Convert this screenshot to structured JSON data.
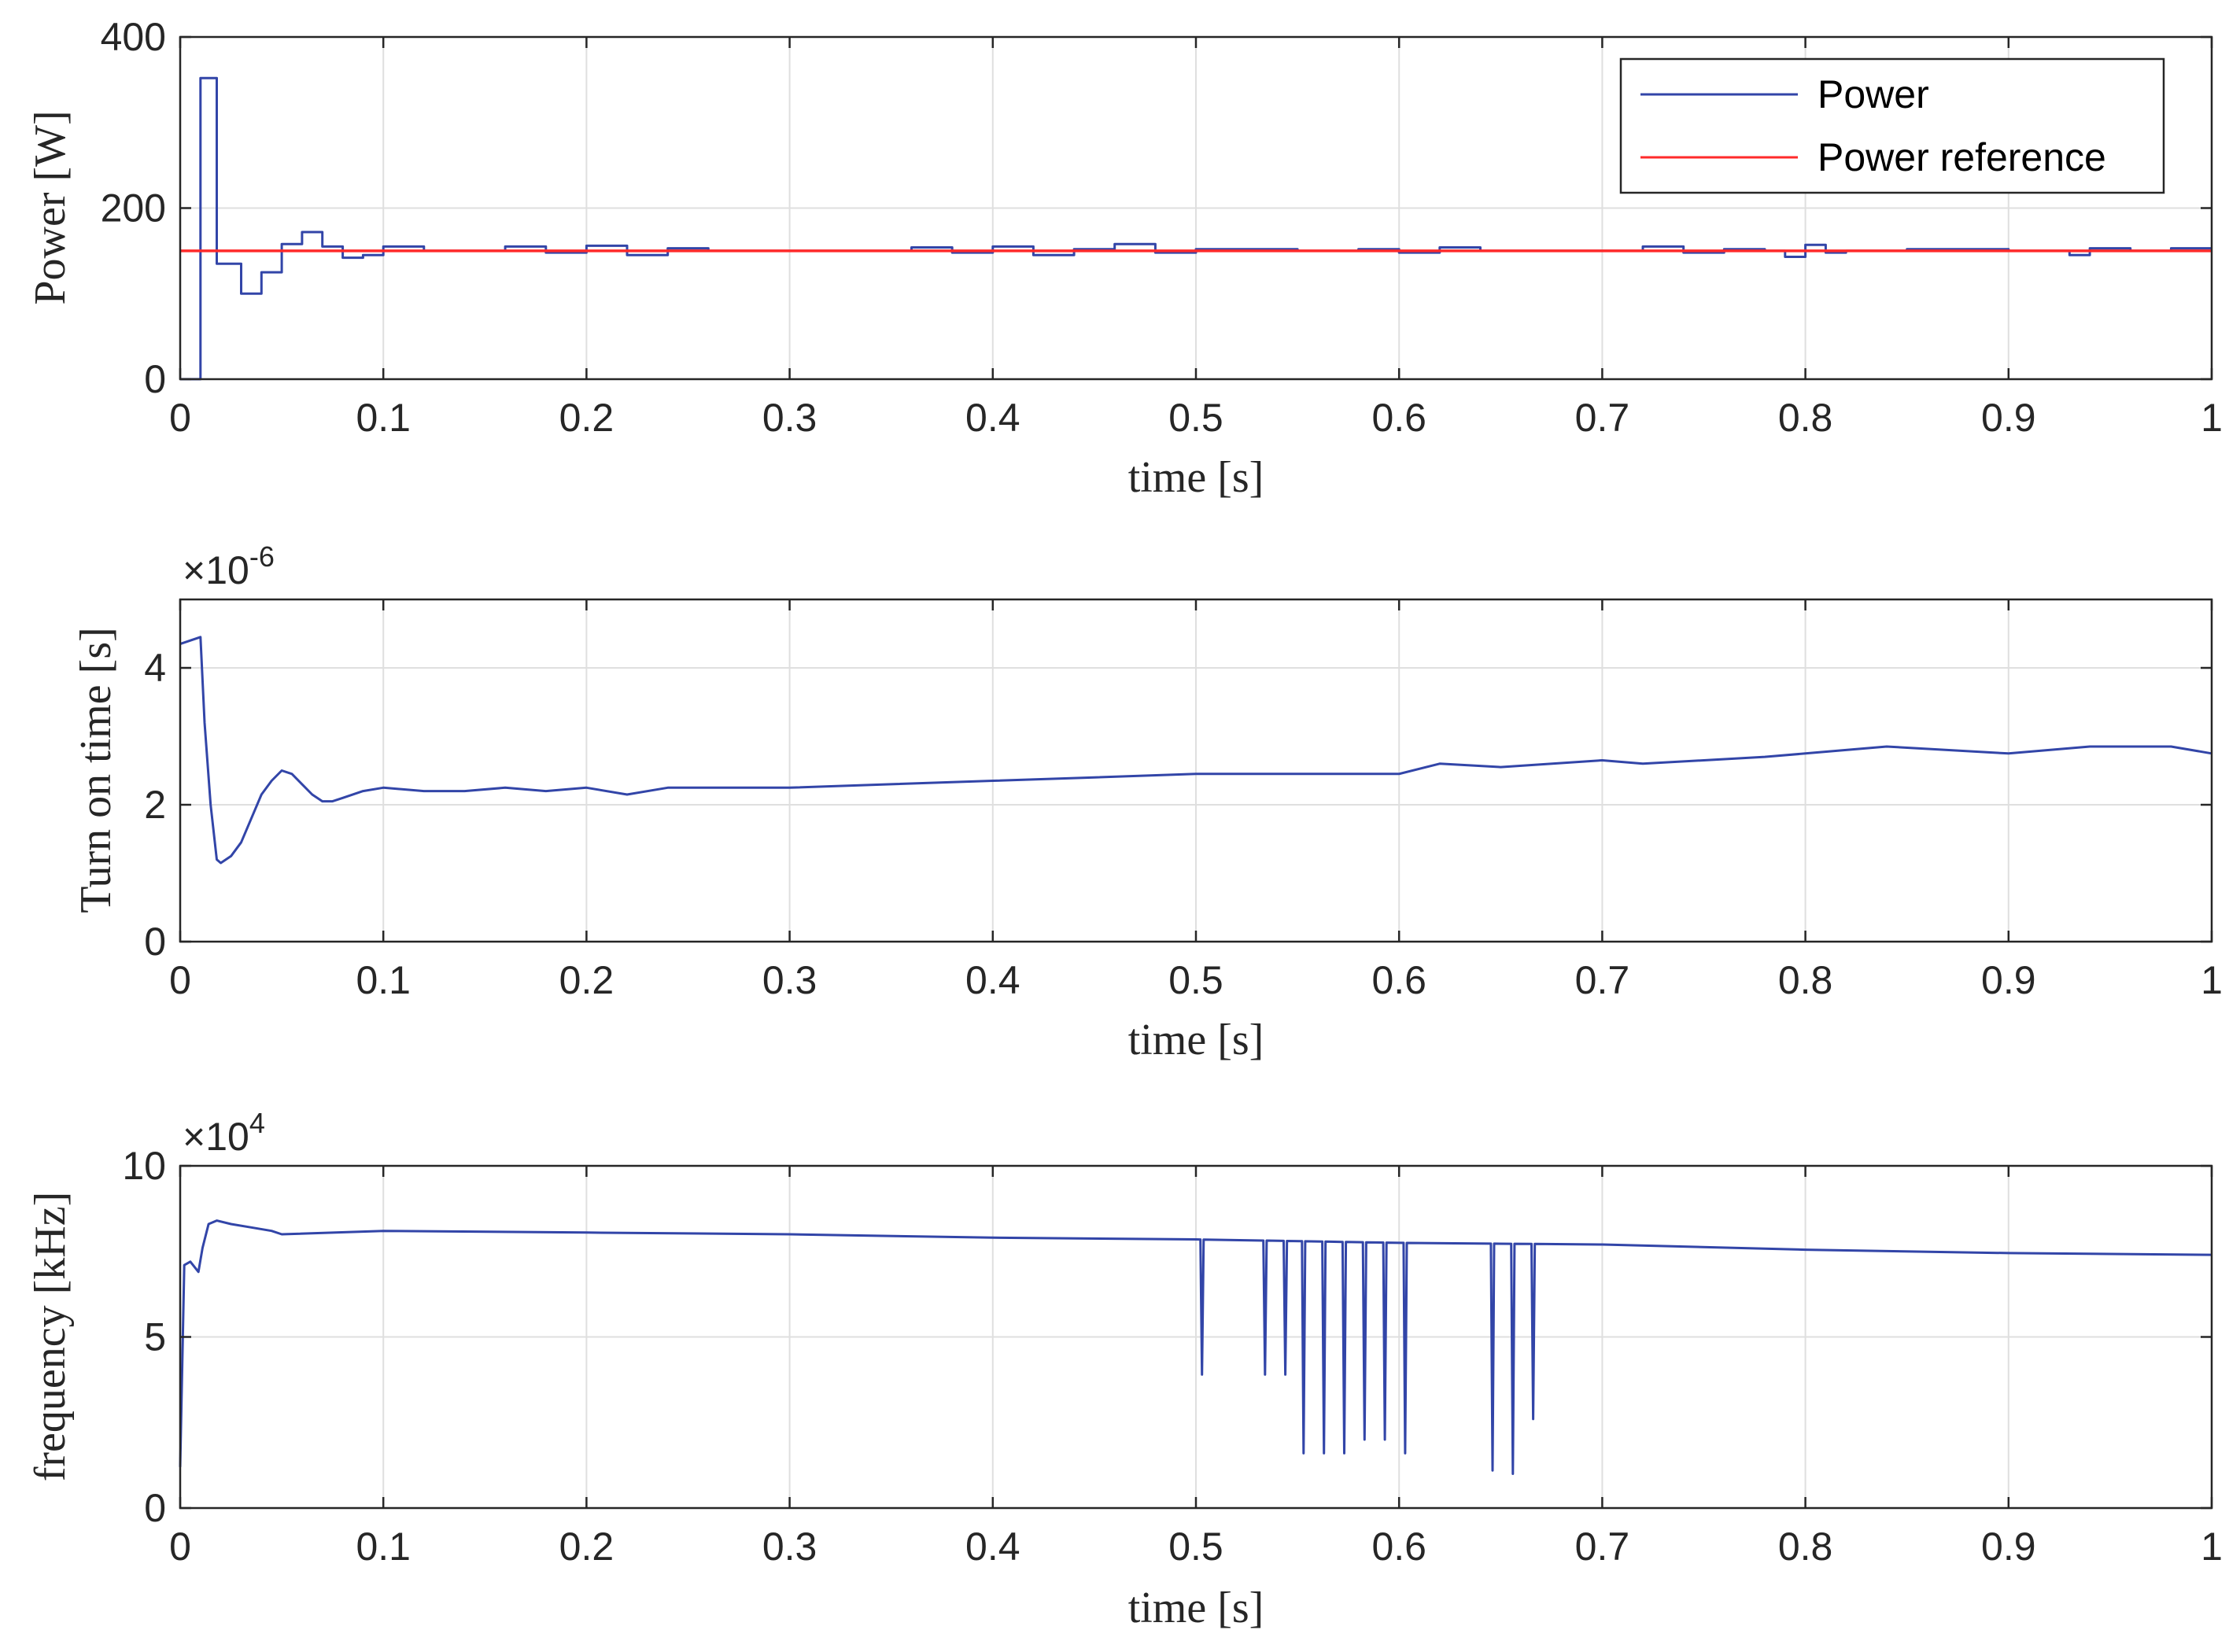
{
  "colors": {
    "power": "#3245a8",
    "reference": "#ff2a2a",
    "axis": "#262626",
    "grid": "#dfdfdf"
  },
  "chart_data": [
    {
      "type": "line",
      "xlabel": "time [s]",
      "ylabel": "Power [W]",
      "xlim": [
        0,
        1
      ],
      "ylim": [
        0,
        400
      ],
      "xticks": [
        "0",
        "0.1",
        "0.2",
        "0.3",
        "0.4",
        "0.5",
        "0.6",
        "0.7",
        "0.8",
        "0.9",
        "1"
      ],
      "yticks": [
        "0",
        "200",
        "400"
      ],
      "ytick_values": [
        0,
        200,
        400
      ],
      "grid": true,
      "legend": {
        "placement": "top-right",
        "entries": [
          "Power",
          "Power reference"
        ]
      },
      "series": [
        {
          "name": "Power",
          "style": "step",
          "x": [
            0,
            0.01,
            0.018,
            0.03,
            0.04,
            0.05,
            0.06,
            0.07,
            0.08,
            0.09,
            0.1,
            0.12,
            0.14,
            0.16,
            0.18,
            0.2,
            0.22,
            0.24,
            0.26,
            0.3,
            0.36,
            0.38,
            0.4,
            0.42,
            0.44,
            0.46,
            0.48,
            0.5,
            0.55,
            0.58,
            0.6,
            0.62,
            0.64,
            0.7,
            0.72,
            0.74,
            0.76,
            0.78,
            0.79,
            0.8,
            0.81,
            0.82,
            0.85,
            0.9,
            0.93,
            0.94,
            0.96,
            0.98,
            1.0
          ],
          "values": [
            0,
            352,
            135,
            100,
            125,
            158,
            172,
            155,
            142,
            145,
            155,
            150,
            150,
            155,
            148,
            156,
            145,
            153,
            150,
            150,
            154,
            148,
            155,
            145,
            152,
            158,
            148,
            152,
            150,
            152,
            148,
            154,
            150,
            150,
            155,
            148,
            152,
            150,
            143,
            157,
            148,
            150,
            152,
            150,
            145,
            153,
            150,
            153,
            153
          ]
        },
        {
          "name": "Power reference",
          "style": "line",
          "x": [
            0,
            1
          ],
          "values": [
            150,
            150
          ]
        }
      ]
    },
    {
      "type": "line",
      "xlabel": "time [s]",
      "ylabel": "Turn on time [s]",
      "exponent": "×10-6",
      "exponent_base": "×10",
      "exponent_power": "-6",
      "xlim": [
        0,
        1
      ],
      "ylim": [
        0,
        5
      ],
      "xticks": [
        "0",
        "0.1",
        "0.2",
        "0.3",
        "0.4",
        "0.5",
        "0.6",
        "0.7",
        "0.8",
        "0.9",
        "1"
      ],
      "yticks": [
        "0",
        "2",
        "4"
      ],
      "ytick_values": [
        0,
        2,
        4
      ],
      "grid": true,
      "series": [
        {
          "name": "Turn on time",
          "x": [
            0,
            0.01,
            0.012,
            0.015,
            0.018,
            0.02,
            0.025,
            0.03,
            0.035,
            0.04,
            0.045,
            0.05,
            0.055,
            0.06,
            0.065,
            0.07,
            0.075,
            0.08,
            0.09,
            0.1,
            0.12,
            0.14,
            0.16,
            0.18,
            0.2,
            0.22,
            0.24,
            0.26,
            0.3,
            0.35,
            0.4,
            0.45,
            0.5,
            0.55,
            0.6,
            0.62,
            0.65,
            0.7,
            0.72,
            0.75,
            0.78,
            0.8,
            0.84,
            0.9,
            0.94,
            0.98,
            1.0
          ],
          "values": [
            4.35,
            4.45,
            3.2,
            2.0,
            1.2,
            1.15,
            1.25,
            1.45,
            1.8,
            2.15,
            2.35,
            2.5,
            2.45,
            2.3,
            2.15,
            2.05,
            2.05,
            2.1,
            2.2,
            2.25,
            2.2,
            2.2,
            2.25,
            2.2,
            2.25,
            2.15,
            2.25,
            2.25,
            2.25,
            2.3,
            2.35,
            2.4,
            2.45,
            2.45,
            2.45,
            2.6,
            2.55,
            2.65,
            2.6,
            2.65,
            2.7,
            2.75,
            2.85,
            2.75,
            2.85,
            2.85,
            2.75
          ]
        }
      ]
    },
    {
      "type": "line",
      "xlabel": "time [s]",
      "ylabel": "frequency [kHz]",
      "exponent": "×104",
      "exponent_base": "×10",
      "exponent_power": "4",
      "xlim": [
        0,
        1
      ],
      "ylim": [
        0,
        10
      ],
      "xticks": [
        "0",
        "0.1",
        "0.2",
        "0.3",
        "0.4",
        "0.5",
        "0.6",
        "0.7",
        "0.8",
        "0.9",
        "1"
      ],
      "yticks": [
        "0",
        "5",
        "10"
      ],
      "ytick_values": [
        0,
        5,
        10
      ],
      "grid": true,
      "series": [
        {
          "name": "frequency",
          "x": [
            0,
            0.002,
            0.005,
            0.009,
            0.011,
            0.014,
            0.018,
            0.025,
            0.035,
            0.045,
            0.05,
            0.1,
            0.2,
            0.3,
            0.4,
            0.5,
            0.6,
            0.7,
            0.8,
            0.9,
            1.0
          ],
          "values": [
            1.2,
            7.1,
            7.2,
            6.9,
            7.6,
            8.3,
            8.4,
            8.3,
            8.2,
            8.1,
            8.0,
            8.1,
            8.05,
            8.0,
            7.9,
            7.85,
            7.75,
            7.7,
            7.55,
            7.45,
            7.4
          ],
          "dips": [
            {
              "x": 0.503,
              "min": 3.9
            },
            {
              "x": 0.534,
              "min": 3.9
            },
            {
              "x": 0.544,
              "min": 3.9
            },
            {
              "x": 0.553,
              "min": 1.6
            },
            {
              "x": 0.563,
              "min": 1.6
            },
            {
              "x": 0.573,
              "min": 1.6
            },
            {
              "x": 0.583,
              "min": 2.0
            },
            {
              "x": 0.593,
              "min": 2.0
            },
            {
              "x": 0.603,
              "min": 1.6
            },
            {
              "x": 0.646,
              "min": 1.1
            },
            {
              "x": 0.656,
              "min": 1.0
            },
            {
              "x": 0.666,
              "min": 2.6
            }
          ]
        }
      ]
    }
  ]
}
